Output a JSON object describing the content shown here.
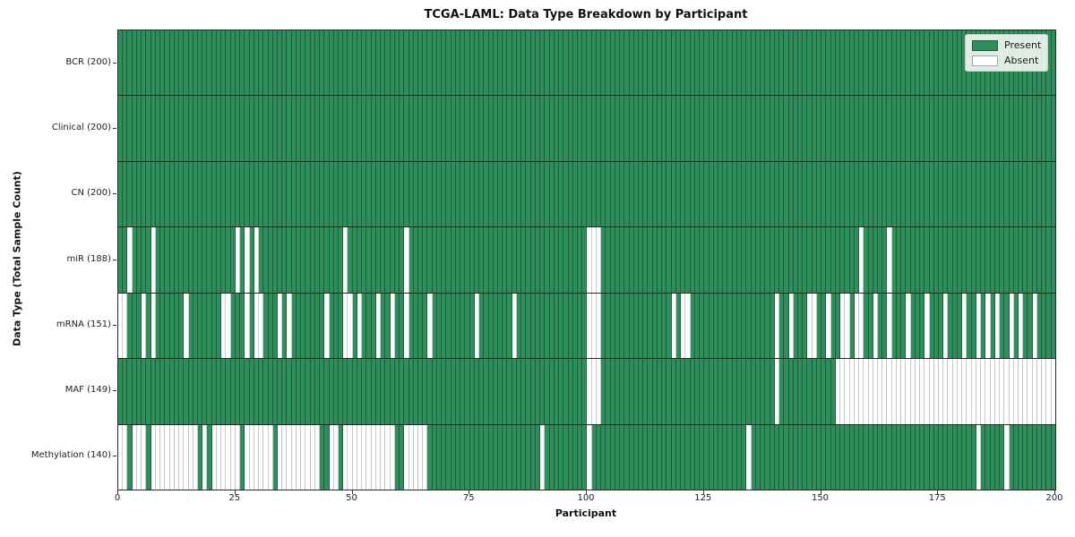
{
  "chart_data": {
    "type": "heatmap",
    "title": "TCGA-LAML: Data Type Breakdown by Participant",
    "xlabel": "Participant",
    "ylabel": "Data Type (Total Sample Count)",
    "x_range": [
      0,
      200
    ],
    "x_ticks": [
      0,
      25,
      50,
      75,
      100,
      125,
      150,
      175,
      200
    ],
    "n_participants": 200,
    "grid": "cell-borders",
    "legend_position": "upper right",
    "legend": [
      {
        "label": "Present",
        "value": "present"
      },
      {
        "label": "Absent",
        "value": "absent"
      }
    ],
    "colors": {
      "present": "#2f8f5b",
      "absent": "#ffffff",
      "present_grid": "#1f5f3d",
      "absent_grid": "#c9c9c9"
    },
    "rows": [
      {
        "name": "BCR",
        "label": "BCR (200)",
        "total": 200,
        "absent": []
      },
      {
        "name": "Clinical",
        "label": "Clinical (200)",
        "total": 200,
        "absent": []
      },
      {
        "name": "CN",
        "label": "CN (200)",
        "total": 200,
        "absent": []
      },
      {
        "name": "miR",
        "label": "miR (188)",
        "total": 188,
        "absent": [
          2,
          7,
          25,
          27,
          29,
          48,
          61,
          100,
          101,
          102,
          158,
          164
        ]
      },
      {
        "name": "mRNA",
        "label": "mRNA (151)",
        "total": 151,
        "absent": [
          0,
          1,
          5,
          7,
          14,
          22,
          23,
          27,
          29,
          30,
          34,
          36,
          44,
          48,
          49,
          51,
          55,
          58,
          61,
          66,
          76,
          84,
          100,
          101,
          102,
          118,
          120,
          121,
          140,
          143,
          147,
          148,
          151,
          154,
          155,
          157,
          158,
          161,
          164,
          168,
          172,
          176,
          180,
          183,
          185,
          187,
          190,
          192,
          195
        ]
      },
      {
        "name": "MAF",
        "label": "MAF (149)",
        "total": 149,
        "absent": [
          100,
          101,
          102,
          140,
          153,
          154,
          155,
          156,
          157,
          158,
          159,
          160,
          161,
          162,
          163,
          164,
          165,
          166,
          167,
          168,
          169,
          170,
          171,
          172,
          173,
          174,
          175,
          176,
          177,
          178,
          179,
          180,
          181,
          182,
          183,
          184,
          185,
          186,
          187,
          188,
          189,
          190,
          191,
          192,
          193,
          194,
          195,
          196,
          197,
          198,
          199
        ]
      },
      {
        "name": "Methylation",
        "label": "Methylation (140)",
        "total": 140,
        "absent": [
          0,
          1,
          3,
          4,
          5,
          7,
          8,
          9,
          10,
          11,
          12,
          13,
          14,
          15,
          16,
          18,
          20,
          21,
          22,
          23,
          24,
          25,
          27,
          28,
          29,
          30,
          31,
          32,
          34,
          35,
          36,
          37,
          38,
          39,
          40,
          41,
          42,
          45,
          46,
          48,
          49,
          50,
          51,
          52,
          53,
          54,
          55,
          56,
          57,
          58,
          61,
          62,
          63,
          64,
          65,
          90,
          100,
          134,
          183,
          189
        ]
      }
    ]
  }
}
